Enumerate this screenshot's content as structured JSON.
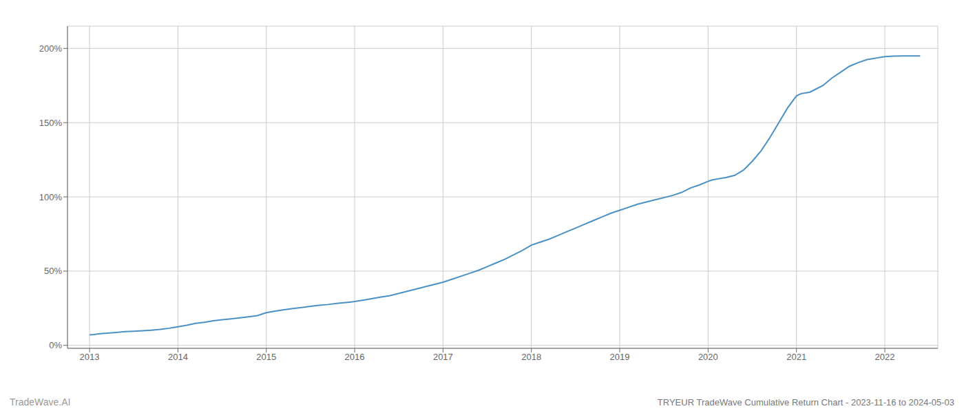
{
  "chart_data": {
    "type": "line",
    "title": "TRYEUR TradeWave Cumulative Return Chart - 2023-11-16 to 2024-05-03",
    "annotations": [
      "TradeWave.AI"
    ],
    "x": [
      2013.0,
      2013.05,
      2013.1,
      2013.2,
      2013.3,
      2013.4,
      2013.5,
      2013.6,
      2013.7,
      2013.8,
      2013.9,
      2014.0,
      2014.1,
      2014.2,
      2014.3,
      2014.4,
      2014.5,
      2014.6,
      2014.7,
      2014.8,
      2014.9,
      2015.0,
      2015.1,
      2015.2,
      2015.3,
      2015.4,
      2015.5,
      2015.6,
      2015.7,
      2015.8,
      2015.9,
      2016.0,
      2016.1,
      2016.2,
      2016.3,
      2016.4,
      2016.5,
      2016.6,
      2016.7,
      2016.8,
      2016.9,
      2017.0,
      2017.1,
      2017.2,
      2017.3,
      2017.4,
      2017.5,
      2017.6,
      2017.7,
      2017.8,
      2017.9,
      2018.0,
      2018.1,
      2018.2,
      2018.3,
      2018.4,
      2018.5,
      2018.6,
      2018.7,
      2018.8,
      2018.9,
      2019.0,
      2019.1,
      2019.2,
      2019.3,
      2019.4,
      2019.5,
      2019.6,
      2019.7,
      2019.8,
      2019.9,
      2020.0,
      2020.05,
      2020.1,
      2020.15,
      2020.2,
      2020.3,
      2020.4,
      2020.5,
      2020.6,
      2020.7,
      2020.8,
      2020.9,
      2021.0,
      2021.05,
      2021.1,
      2021.15,
      2021.2,
      2021.3,
      2021.4,
      2021.5,
      2021.6,
      2021.7,
      2021.8,
      2021.9,
      2022.0,
      2022.1,
      2022.2,
      2022.3,
      2022.4
    ],
    "values": [
      7.0,
      7.3,
      7.7,
      8.2,
      8.7,
      9.2,
      9.5,
      9.8,
      10.2,
      10.7,
      11.5,
      12.5,
      13.5,
      14.8,
      15.5,
      16.5,
      17.2,
      17.8,
      18.5,
      19.2,
      20.0,
      22.0,
      23.0,
      24.0,
      24.8,
      25.5,
      26.3,
      27.0,
      27.5,
      28.2,
      28.8,
      29.5,
      30.5,
      31.5,
      32.5,
      33.5,
      35.0,
      36.5,
      38.0,
      39.5,
      41.0,
      42.5,
      44.5,
      46.5,
      48.5,
      50.5,
      53.0,
      55.5,
      58.0,
      61.0,
      64.0,
      67.5,
      69.5,
      71.5,
      74.0,
      76.5,
      79.0,
      81.5,
      84.0,
      86.5,
      89.0,
      91.0,
      93.0,
      95.0,
      96.5,
      98.0,
      99.5,
      101.0,
      103.0,
      106.0,
      108.0,
      110.5,
      111.5,
      112.0,
      112.5,
      113.0,
      114.5,
      118.0,
      124.0,
      131.0,
      140.0,
      150.0,
      160.0,
      168.0,
      169.5,
      170.0,
      170.5,
      172.0,
      175.0,
      180.0,
      184.0,
      188.0,
      190.5,
      192.5,
      193.5,
      194.5,
      194.8,
      194.9,
      195.0,
      195.0
    ],
    "color": "#4a90c4",
    "xlim": [
      2012.75,
      2022.6
    ],
    "ylim": [
      -2.0,
      215.0
    ],
    "xticks": [
      2013,
      2014,
      2015,
      2016,
      2017,
      2018,
      2019,
      2020,
      2021,
      2022
    ],
    "yticks": [
      {
        "value": 0,
        "label": "0%"
      },
      {
        "value": 50,
        "label": "50%"
      },
      {
        "value": 100,
        "label": "100%"
      },
      {
        "value": 150,
        "label": "150%"
      },
      {
        "value": 200,
        "label": "200%"
      }
    ],
    "grid": true
  }
}
